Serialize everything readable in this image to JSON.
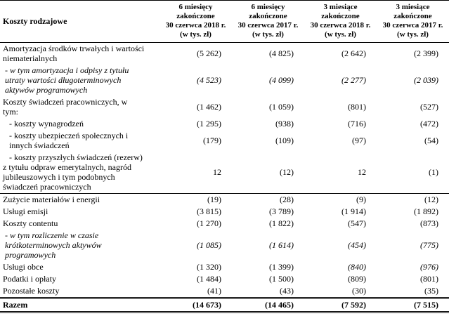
{
  "colors": {
    "text": "#000000",
    "background": "#ffffff",
    "rule": "#000000"
  },
  "header": {
    "row_label": "Koszty rodzajowe",
    "columns": [
      "6 miesięcy\nzakończone\n30 czerwca 2018 r.\n(w tys. zł)",
      "6 miesięcy\nzakończone\n30 czerwca 2017 r.\n(w tys. zł)",
      "3 miesiące\nzakończone\n30 czerwca 2018 r.\n(w tys. zł)",
      "3 miesiące\nzakończone\n30 czerwca 2017 r.\n(w tys. zł)"
    ]
  },
  "rows": [
    {
      "label": "Amortyzacja środków trwałych i wartości\nniematerialnych",
      "values": [
        "(5 262)",
        "(4 825)",
        "(2 642)",
        "(2 399)"
      ]
    },
    {
      "label": "- w tym amortyzacja i odpisy z tytułu\nutraty wartości długoterminowych\naktywów programowych",
      "values": [
        "(4 523)",
        "(4 099)",
        "(2 277)",
        "(2 039)"
      ]
    },
    {
      "label": "Koszty świadczeń pracowniczych, w\ntym:",
      "values": [
        "(1 462)",
        "(1 059)",
        "(801)",
        "(527)"
      ]
    },
    {
      "label": "- koszty wynagrodzeń",
      "values": [
        "(1 295)",
        "(938)",
        "(716)",
        "(472)"
      ]
    },
    {
      "label": "- koszty ubezpieczeń społecznych i\ninnych świadczeń",
      "values": [
        "(179)",
        "(109)",
        "(97)",
        "(54)"
      ]
    },
    {
      "label": "- koszty przyszłych świadczeń (rezerw)\nz tytułu odpraw emerytalnych, nagród\njubileuszowych i tym podobnych\nświadczeń pracowniczych",
      "values": [
        "12",
        "(12)",
        "12",
        "(1)"
      ]
    },
    {
      "label": "Zużycie materiałów i energii",
      "values": [
        "(19)",
        "(28)",
        "(9)",
        "(12)"
      ]
    },
    {
      "label": "Usługi emisji",
      "values": [
        "(3 815)",
        "(3 789)",
        "(1 914)",
        "(1 892)"
      ]
    },
    {
      "label": "Koszty contentu",
      "values": [
        "(1 270)",
        "(1 822)",
        "(547)",
        "(873)"
      ]
    },
    {
      "label": "- w tym rozliczenie w czasie\nkrótkoterminowych aktywów\nprogramowych",
      "values": [
        "(1 085)",
        "(1 614)",
        "(454)",
        "(775)"
      ]
    },
    {
      "label": "Usługi obce",
      "values": [
        "(1 320)",
        "(1 399)",
        "(840)",
        "(976)"
      ]
    },
    {
      "label": "Podatki i opłaty",
      "values": [
        "(1 484)",
        "(1 500)",
        "(809)",
        "(801)"
      ]
    },
    {
      "label": "Pozostałe koszty",
      "values": [
        "(41)",
        "(43)",
        "(30)",
        "(35)"
      ]
    },
    {
      "label": "Razem",
      "values": [
        "(14 673)",
        "(14 465)",
        "(7 592)",
        "(7 515)"
      ]
    }
  ]
}
